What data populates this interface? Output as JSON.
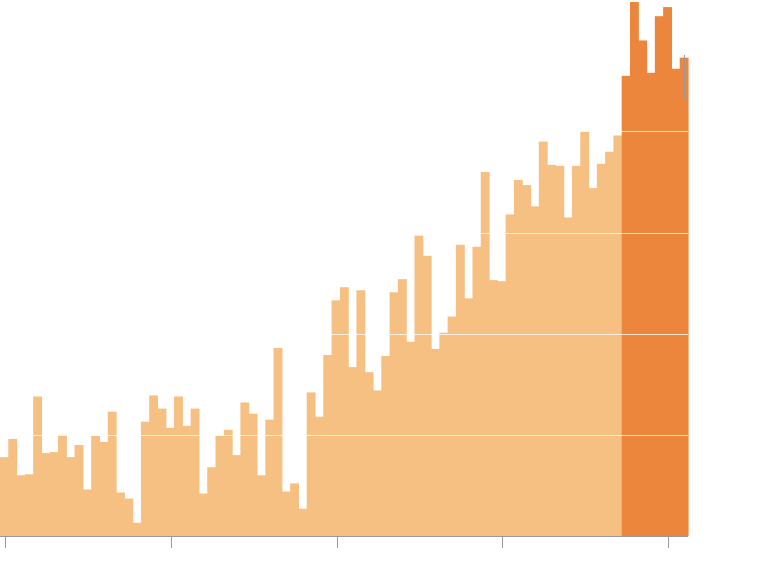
{
  "chart_data": {
    "type": "area",
    "step": true,
    "grid": "horizontal",
    "legend": "none",
    "axis_labels_shown": false,
    "x_range": [
      0,
      83
    ],
    "ylim": [
      0,
      5.3
    ],
    "gridlines": [
      1,
      2,
      3,
      4
    ],
    "x_ticks": [
      0,
      20,
      40,
      60,
      80
    ],
    "highlight_start": 75,
    "colors": {
      "base": "#f6c083",
      "highlight": "#ec863c",
      "grid": "#ffffff",
      "axis": "#9a9a9a"
    },
    "values": [
      0.78,
      0.96,
      0.6,
      0.61,
      1.38,
      0.82,
      0.83,
      1.0,
      0.78,
      0.9,
      0.46,
      0.99,
      0.93,
      1.23,
      0.43,
      0.37,
      0.13,
      1.13,
      1.39,
      1.26,
      1.07,
      1.38,
      1.09,
      1.26,
      0.42,
      0.68,
      0.99,
      1.05,
      0.8,
      1.32,
      1.21,
      0.6,
      1.15,
      1.86,
      0.44,
      0.52,
      0.27,
      1.42,
      1.18,
      1.79,
      2.33,
      2.46,
      1.67,
      2.43,
      1.62,
      1.44,
      1.78,
      2.41,
      2.54,
      1.92,
      2.97,
      2.77,
      1.85,
      2.01,
      2.17,
      2.88,
      2.35,
      2.86,
      3.6,
      2.53,
      2.52,
      3.18,
      3.52,
      3.47,
      3.26,
      3.9,
      3.67,
      3.66,
      3.15,
      3.66,
      4.0,
      3.44,
      3.68,
      3.8,
      3.96,
      4.55,
      5.28,
      4.9,
      4.58,
      5.14,
      5.23,
      4.62,
      4.73
    ]
  }
}
